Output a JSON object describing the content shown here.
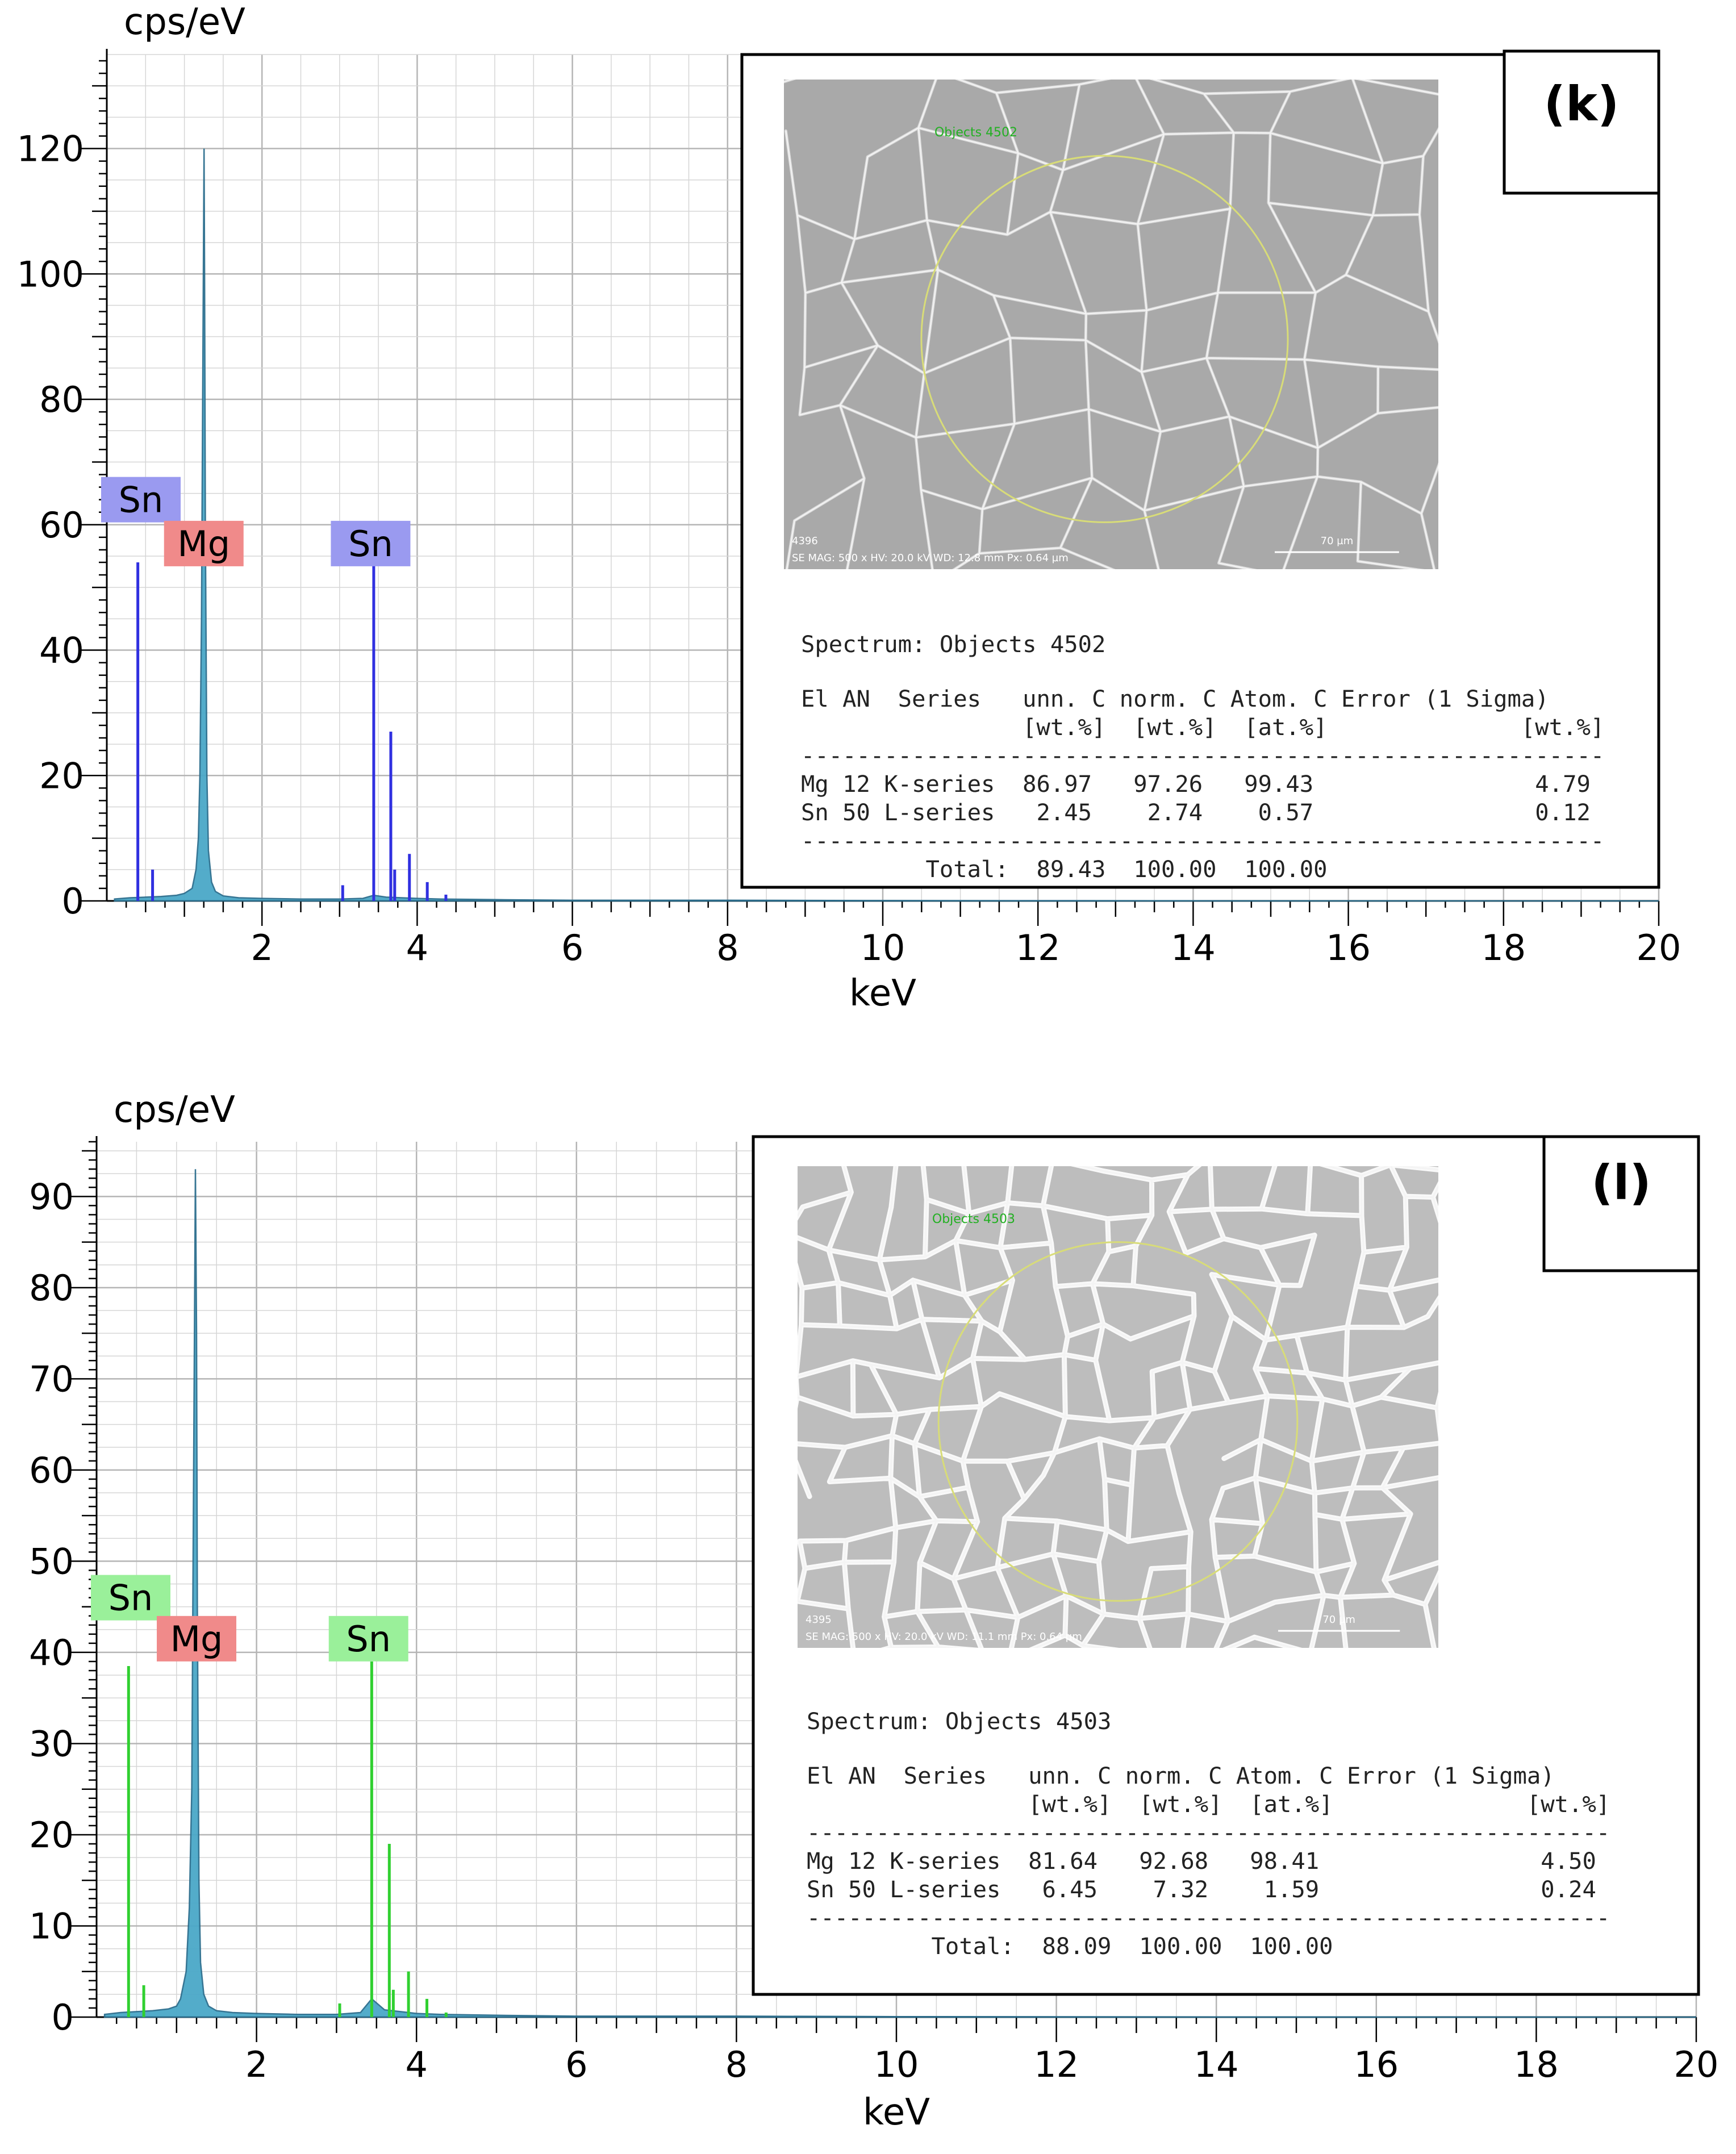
{
  "chart_data": [
    {
      "type": "line",
      "title": "",
      "panel_label": "(k)",
      "xlabel": "keV",
      "ylabel": "cps/eV",
      "xlim": [
        0,
        20
      ],
      "ylim": [
        0,
        135
      ],
      "x_ticks": [
        2,
        4,
        6,
        8,
        10,
        12,
        14,
        16,
        18,
        20
      ],
      "y_ticks": [
        0,
        20,
        40,
        60,
        80,
        100,
        120
      ],
      "grid": true,
      "colors": {
        "spectrum": "#4aa8c8",
        "spectrum_edge": "#2c6e8e",
        "lines": "#3030e0",
        "label_sn": "#9a9af0",
        "label_mg": "#f08a8a"
      },
      "series": [
        {
          "name": "spectrum",
          "x": [
            0.1,
            0.3,
            0.5,
            0.7,
            0.9,
            1.0,
            1.1,
            1.15,
            1.18,
            1.2,
            1.22,
            1.24,
            1.253,
            1.26,
            1.27,
            1.29,
            1.31,
            1.35,
            1.4,
            1.5,
            1.7,
            2.0,
            2.5,
            3.0,
            3.3,
            3.44,
            3.6,
            3.8,
            4.0,
            4.3,
            5,
            6,
            8,
            10,
            14,
            20
          ],
          "values": [
            0.3,
            0.5,
            0.6,
            0.7,
            0.9,
            1.2,
            2,
            5,
            10,
            20,
            45,
            90,
            120,
            100,
            60,
            20,
            8,
            3,
            1.5,
            0.8,
            0.5,
            0.4,
            0.3,
            0.3,
            0.4,
            0.9,
            0.6,
            0.5,
            0.4,
            0.3,
            0.2,
            0.1,
            0.1,
            0.05,
            0.02,
            0
          ]
        },
        {
          "name": "Sn L lines",
          "x": [
            0.4,
            0.59,
            3.04,
            3.44,
            3.66,
            3.71,
            3.9,
            4.13,
            4.37
          ],
          "values": [
            54,
            5,
            2.5,
            55,
            27,
            5,
            7.5,
            3,
            1
          ]
        }
      ],
      "element_labels": [
        {
          "text": "Sn",
          "kind": "sn",
          "x": 0.3,
          "y": 64
        },
        {
          "text": "Mg",
          "kind": "mg",
          "x": 1.25,
          "y": 57
        },
        {
          "text": "Sn",
          "kind": "sn",
          "x": 3.4,
          "y": 57
        }
      ]
    },
    {
      "type": "line",
      "title": "",
      "panel_label": "(l)",
      "xlabel": "keV",
      "ylabel": "cps/eV",
      "xlim": [
        0,
        20
      ],
      "ylim": [
        0,
        96
      ],
      "x_ticks": [
        2,
        4,
        6,
        8,
        10,
        12,
        14,
        16,
        18,
        20
      ],
      "y_ticks": [
        0,
        10,
        20,
        30,
        40,
        50,
        60,
        70,
        80,
        90
      ],
      "grid": true,
      "colors": {
        "spectrum": "#4aa8c8",
        "spectrum_edge": "#2c6e8e",
        "lines": "#30d030",
        "label_sn": "#9af09a",
        "label_mg": "#f08a8a"
      },
      "series": [
        {
          "name": "spectrum",
          "x": [
            0.1,
            0.3,
            0.5,
            0.7,
            0.9,
            1.0,
            1.05,
            1.12,
            1.16,
            1.19,
            1.21,
            1.236,
            1.25,
            1.26,
            1.28,
            1.3,
            1.34,
            1.4,
            1.5,
            1.7,
            2.0,
            2.5,
            3.0,
            3.3,
            3.44,
            3.6,
            3.8,
            4.0,
            4.3,
            5,
            6,
            8,
            10,
            14,
            20
          ],
          "values": [
            0.3,
            0.5,
            0.6,
            0.7,
            0.9,
            1.2,
            2,
            5,
            12,
            25,
            55,
            93,
            75,
            45,
            15,
            6,
            2.5,
            1.2,
            0.7,
            0.5,
            0.4,
            0.3,
            0.3,
            0.5,
            2,
            0.8,
            0.6,
            0.4,
            0.3,
            0.2,
            0.1,
            0.1,
            0.05,
            0.02,
            0
          ]
        },
        {
          "name": "Sn L lines",
          "x": [
            0.4,
            0.59,
            3.04,
            3.44,
            3.66,
            3.71,
            3.9,
            4.13,
            4.37
          ],
          "values": [
            38.5,
            3.5,
            1.5,
            39,
            19,
            3,
            5,
            2,
            0.5
          ]
        }
      ],
      "element_labels": [
        {
          "text": "Sn",
          "kind": "sn",
          "x": 0.25,
          "y": 46
        },
        {
          "text": "Mg",
          "kind": "mg",
          "x": 1.25,
          "y": 41.5
        },
        {
          "text": "Sn",
          "kind": "sn",
          "x": 3.4,
          "y": 41.5
        }
      ]
    }
  ],
  "panels": [
    {
      "label": "(k)",
      "sem": {
        "object_label": "Objects 4502",
        "footer_id": "4396",
        "footer_info": "SE MAG: 500 x  HV: 20.0 kV  WD: 12.8 mm  Px: 0.64 µm",
        "scale_bar": "70 µm",
        "style": "sparse"
      },
      "spectrum_title": "Spectrum: Objects 4502",
      "table_header_1": "El AN  Series   unn. C norm. C Atom. C Error (1 Sigma)",
      "table_header_2": "                [wt.%]  [wt.%]  [at.%]              [wt.%]",
      "divider": "----------------------------------------------------------",
      "rows": [
        "Mg 12 K-series  86.97   97.26   99.43                4.79",
        "Sn 50 L-series   2.45    2.74    0.57                0.12"
      ],
      "total": "         Total:  89.43  100.00  100.00"
    },
    {
      "label": "(l)",
      "sem": {
        "object_label": "Objects 4503",
        "footer_id": "4395",
        "footer_info": "SE MAG: 500 x  HV: 20.0 kV  WD: 11.1 mm  Px: 0.64 µm",
        "scale_bar": "70 µm",
        "style": "dense"
      },
      "spectrum_title": "Spectrum: Objects 4503",
      "table_header_1": "El AN  Series   unn. C norm. C Atom. C Error (1 Sigma)",
      "table_header_2": "                [wt.%]  [wt.%]  [at.%]              [wt.%]",
      "divider": "----------------------------------------------------------",
      "rows": [
        "Mg 12 K-series  81.64   92.68   98.41                4.50",
        "Sn 50 L-series   6.45    7.32    1.59                0.24"
      ],
      "total": "         Total:  88.09  100.00  100.00"
    }
  ]
}
